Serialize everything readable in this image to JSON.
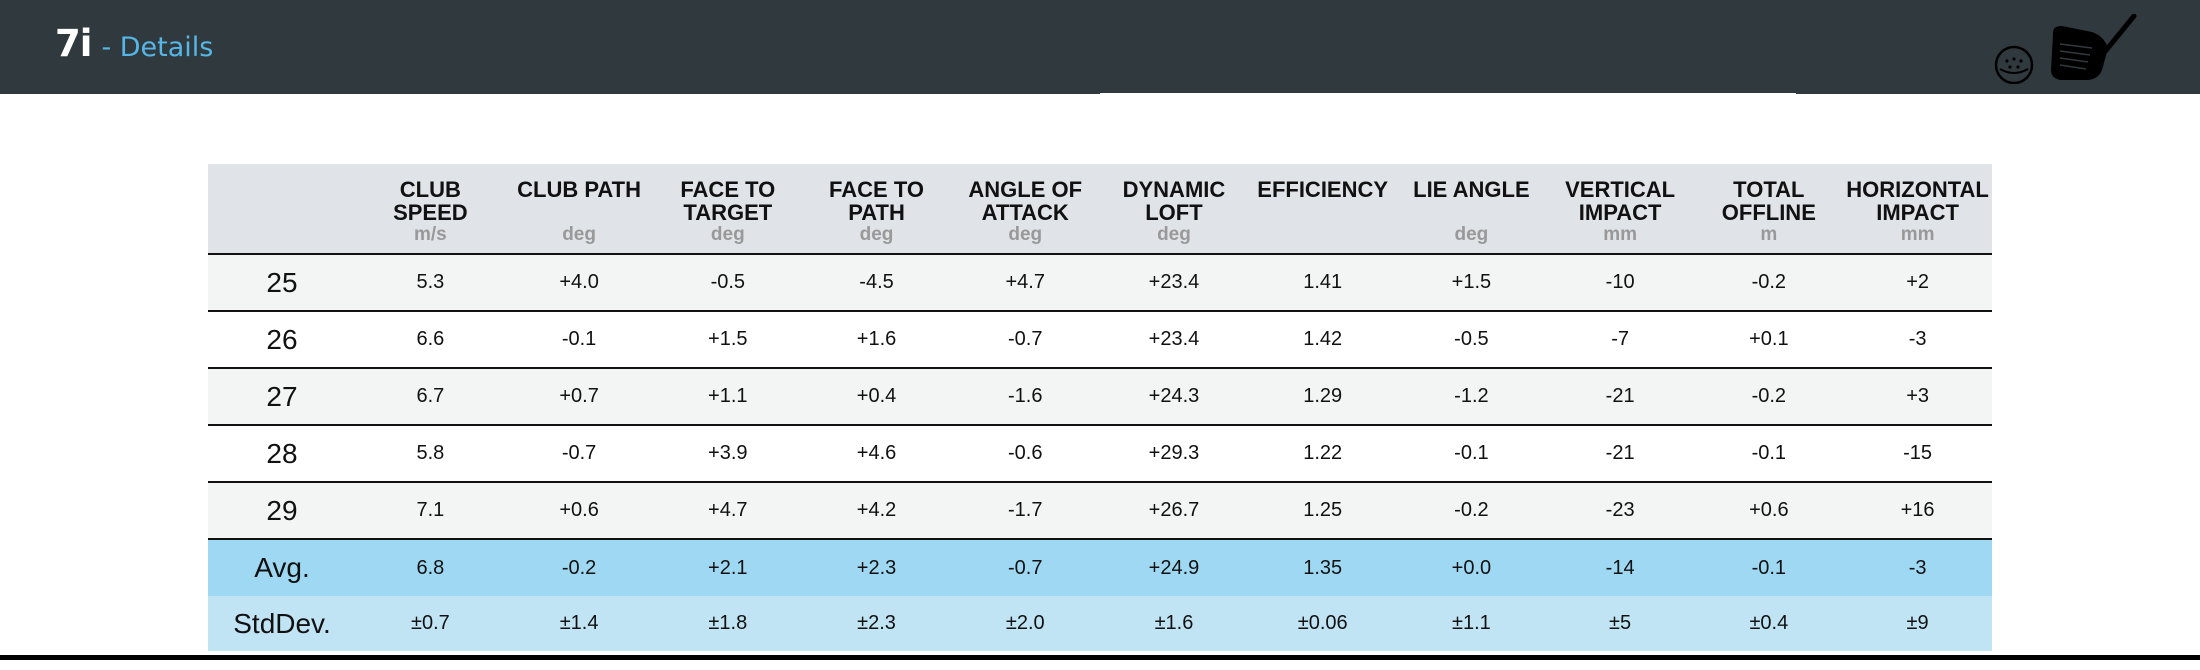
{
  "header": {
    "club": "7i",
    "details": "- Details",
    "icons": [
      "golf-ball-icon",
      "iron-club-icon"
    ]
  },
  "colors": {
    "header_bg": "#303a3e",
    "details_text": "#56b6e6",
    "table_header_bg": "#e0e3e8",
    "avg_row_bg": "#9ed8f2",
    "stddev_row_bg": "#c1e4f5"
  },
  "table": {
    "columns": [
      {
        "name": "CLUB\nSPEED",
        "unit": "m/s"
      },
      {
        "name": "CLUB PATH",
        "unit": "deg"
      },
      {
        "name": "FACE TO\nTARGET",
        "unit": "deg"
      },
      {
        "name": "FACE TO\nPATH",
        "unit": "deg"
      },
      {
        "name": "ANGLE OF\nATTACK",
        "unit": "deg"
      },
      {
        "name": "DYNAMIC\nLOFT",
        "unit": "deg"
      },
      {
        "name": "EFFICIENCY",
        "unit": ""
      },
      {
        "name": "LIE ANGLE",
        "unit": "deg"
      },
      {
        "name": "VERTICAL\nIMPACT",
        "unit": "mm"
      },
      {
        "name": "TOTAL\nOFFLINE",
        "unit": "m"
      },
      {
        "name": "HORIZONTAL\nIMPACT",
        "unit": "mm"
      }
    ],
    "rows": [
      {
        "label": "25",
        "values": [
          "5.3",
          "+4.0",
          "-0.5",
          "-4.5",
          "+4.7",
          "+23.4",
          "1.41",
          "+1.5",
          "-10",
          "-0.2",
          "+2"
        ]
      },
      {
        "label": "26",
        "values": [
          "6.6",
          "-0.1",
          "+1.5",
          "+1.6",
          "-0.7",
          "+23.4",
          "1.42",
          "-0.5",
          "-7",
          "+0.1",
          "-3"
        ]
      },
      {
        "label": "27",
        "values": [
          "6.7",
          "+0.7",
          "+1.1",
          "+0.4",
          "-1.6",
          "+24.3",
          "1.29",
          "-1.2",
          "-21",
          "-0.2",
          "+3"
        ]
      },
      {
        "label": "28",
        "values": [
          "5.8",
          "-0.7",
          "+3.9",
          "+4.6",
          "-0.6",
          "+29.3",
          "1.22",
          "-0.1",
          "-21",
          "-0.1",
          "-15"
        ]
      },
      {
        "label": "29",
        "values": [
          "7.1",
          "+0.6",
          "+4.7",
          "+4.2",
          "-1.7",
          "+26.7",
          "1.25",
          "-0.2",
          "-23",
          "+0.6",
          "+16"
        ]
      }
    ],
    "avg": {
      "label": "Avg.",
      "values": [
        "6.8",
        "-0.2",
        "+2.1",
        "+2.3",
        "-0.7",
        "+24.9",
        "1.35",
        "+0.0",
        "-14",
        "-0.1",
        "-3"
      ]
    },
    "stddev": {
      "label": "StdDev.",
      "values": [
        "±0.7",
        "±1.4",
        "±1.8",
        "±2.3",
        "±2.0",
        "±1.6",
        "±0.06",
        "±1.1",
        "±5",
        "±0.4",
        "±9"
      ]
    }
  }
}
